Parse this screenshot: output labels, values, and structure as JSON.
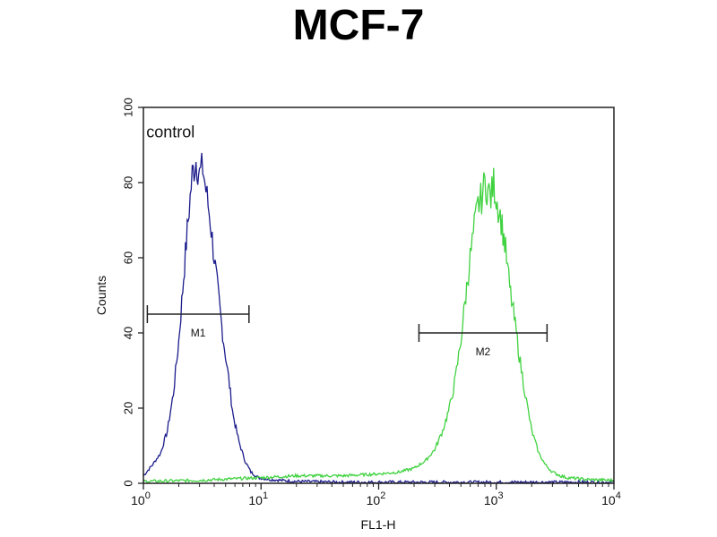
{
  "chart_data": {
    "type": "line",
    "title": "MCF-7",
    "xlabel": "FL1-H",
    "ylabel": "Counts",
    "x_scale": "log",
    "xlim": [
      1,
      10000
    ],
    "ylim": [
      0,
      100
    ],
    "grid": false,
    "x_ticks": [
      {
        "value": 1,
        "base": "10",
        "exp": "0"
      },
      {
        "value": 10,
        "base": "10",
        "exp": "1"
      },
      {
        "value": 100,
        "base": "10",
        "exp": "2"
      },
      {
        "value": 1000,
        "base": "10",
        "exp": "3"
      },
      {
        "value": 10000,
        "base": "10",
        "exp": "4"
      }
    ],
    "y_ticks": [
      0,
      20,
      40,
      60,
      80,
      100
    ],
    "annotations": [
      {
        "text": "control",
        "x": 1.7,
        "y": 92
      }
    ],
    "markers": [
      {
        "label": "M1",
        "x_start": 1.08,
        "x_end": 7.9,
        "y": 45
      },
      {
        "label": "M2",
        "x_start": 220,
        "x_end": 2700,
        "y": 40
      }
    ],
    "series": [
      {
        "color": "#1c1c8c",
        "x": [
          1.0,
          1.2,
          1.4,
          1.6,
          1.8,
          2.0,
          2.2,
          2.4,
          2.6,
          2.8,
          3.0,
          3.2,
          3.4,
          3.7,
          4.0,
          4.4,
          4.8,
          5.3,
          5.8,
          6.5,
          7.3,
          8.2,
          9.5,
          12,
          20,
          50,
          100,
          300,
          1000,
          10000
        ],
        "y": [
          2,
          5,
          8,
          14,
          24,
          38,
          55,
          70,
          82,
          86,
          82,
          84,
          78,
          70,
          60,
          48,
          38,
          28,
          18,
          11,
          6,
          3,
          1.5,
          1,
          0.5,
          0.3,
          0.3,
          0.3,
          0.3,
          0.3
        ]
      },
      {
        "color": "#3fd23f",
        "x": [
          1,
          3,
          10,
          20,
          50,
          100,
          150,
          200,
          250,
          300,
          350,
          400,
          450,
          500,
          550,
          600,
          650,
          700,
          750,
          800,
          850,
          900,
          950,
          1000,
          1100,
          1200,
          1300,
          1450,
          1600,
          1800,
          2000,
          2300,
          2600,
          3000,
          3500,
          4000,
          6000,
          10000
        ],
        "y": [
          0.5,
          0.8,
          1.5,
          2,
          2,
          2.5,
          3,
          4,
          6,
          9,
          14,
          20,
          28,
          38,
          50,
          60,
          68,
          74,
          76,
          80,
          78,
          76,
          80,
          76,
          70,
          62,
          52,
          42,
          32,
          22,
          14,
          8,
          5,
          3,
          2,
          1.5,
          1,
          0.8
        ]
      }
    ]
  }
}
